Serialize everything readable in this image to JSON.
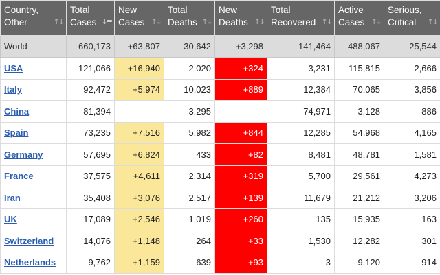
{
  "columns": [
    {
      "line1": "Country,",
      "line2": "Other",
      "sort_icon": "sort-up-down-icon"
    },
    {
      "line1": "Total",
      "line2": "Cases",
      "sort_icon": "sort-descending-icon"
    },
    {
      "line1": "New",
      "line2": "Cases",
      "sort_icon": "sort-up-down-icon"
    },
    {
      "line1": "Total",
      "line2": "Deaths",
      "sort_icon": "sort-up-down-icon"
    },
    {
      "line1": "New",
      "line2": "Deaths",
      "sort_icon": "sort-up-down-icon"
    },
    {
      "line1": "Total",
      "line2": "Recovered",
      "sort_icon": "sort-up-down-icon"
    },
    {
      "line1": "Active",
      "line2": "Cases",
      "sort_icon": "sort-up-down-icon"
    },
    {
      "line1": "Serious,",
      "line2": "Critical",
      "sort_icon": "sort-up-down-icon"
    }
  ],
  "world": {
    "country": "World",
    "total_cases": "660,173",
    "new_cases": "+63,807",
    "total_deaths": "30,642",
    "new_deaths": "+3,298",
    "total_recovered": "141,464",
    "active_cases": "488,067",
    "serious_critical": "25,544"
  },
  "rows": [
    {
      "country": "USA",
      "total_cases": "121,066",
      "new_cases": "+16,940",
      "total_deaths": "2,020",
      "new_deaths": "+324",
      "total_recovered": "3,231",
      "active_cases": "115,815",
      "serious_critical": "2,666"
    },
    {
      "country": "Italy",
      "total_cases": "92,472",
      "new_cases": "+5,974",
      "total_deaths": "10,023",
      "new_deaths": "+889",
      "total_recovered": "12,384",
      "active_cases": "70,065",
      "serious_critical": "3,856"
    },
    {
      "country": "China",
      "total_cases": "81,394",
      "new_cases": "",
      "total_deaths": "3,295",
      "new_deaths": "",
      "total_recovered": "74,971",
      "active_cases": "3,128",
      "serious_critical": "886"
    },
    {
      "country": "Spain",
      "total_cases": "73,235",
      "new_cases": "+7,516",
      "total_deaths": "5,982",
      "new_deaths": "+844",
      "total_recovered": "12,285",
      "active_cases": "54,968",
      "serious_critical": "4,165"
    },
    {
      "country": "Germany",
      "total_cases": "57,695",
      "new_cases": "+6,824",
      "total_deaths": "433",
      "new_deaths": "+82",
      "total_recovered": "8,481",
      "active_cases": "48,781",
      "serious_critical": "1,581"
    },
    {
      "country": "France",
      "total_cases": "37,575",
      "new_cases": "+4,611",
      "total_deaths": "2,314",
      "new_deaths": "+319",
      "total_recovered": "5,700",
      "active_cases": "29,561",
      "serious_critical": "4,273"
    },
    {
      "country": "Iran",
      "total_cases": "35,408",
      "new_cases": "+3,076",
      "total_deaths": "2,517",
      "new_deaths": "+139",
      "total_recovered": "11,679",
      "active_cases": "21,212",
      "serious_critical": "3,206"
    },
    {
      "country": "UK",
      "total_cases": "17,089",
      "new_cases": "+2,546",
      "total_deaths": "1,019",
      "new_deaths": "+260",
      "total_recovered": "135",
      "active_cases": "15,935",
      "serious_critical": "163"
    },
    {
      "country": "Switzerland",
      "total_cases": "14,076",
      "new_cases": "+1,148",
      "total_deaths": "264",
      "new_deaths": "+33",
      "total_recovered": "1,530",
      "active_cases": "12,282",
      "serious_critical": "301"
    },
    {
      "country": "Netherlands",
      "total_cases": "9,762",
      "new_cases": "+1,159",
      "total_deaths": "639",
      "new_deaths": "+93",
      "total_recovered": "3",
      "active_cases": "9,120",
      "serious_critical": "914"
    }
  ],
  "colors": {
    "header_bg": "#666666",
    "new_cases_highlight": "#fbe79a",
    "new_deaths_highlight": "#ff0000",
    "link": "#2a5db0",
    "world_row_bg": "#dcdcdc"
  }
}
